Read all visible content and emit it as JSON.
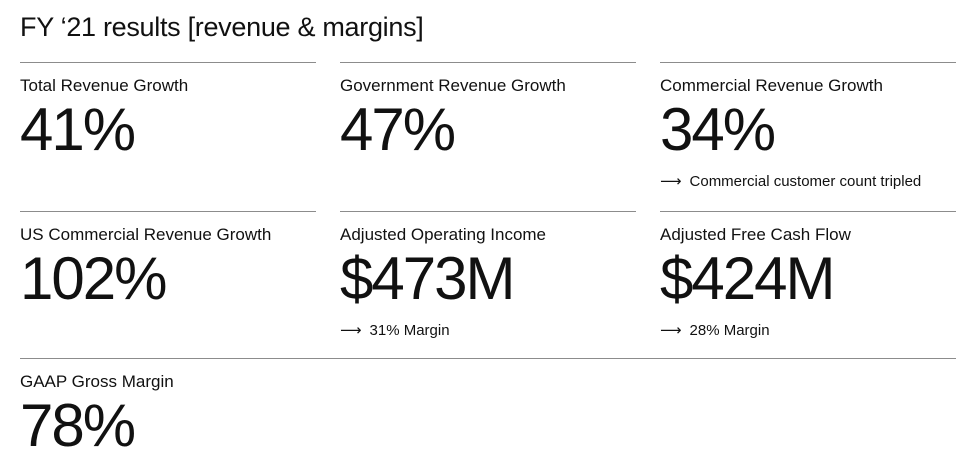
{
  "title": "FY ‘21 results [revenue & margins]",
  "metrics": [
    {
      "label": "Total Revenue Growth",
      "value": "41%",
      "note": ""
    },
    {
      "label": "Government Revenue Growth",
      "value": "47%",
      "note": ""
    },
    {
      "label": "Commercial Revenue Growth",
      "value": "34%",
      "note": "Commercial customer count tripled"
    },
    {
      "label": "US Commercial Revenue Growth",
      "value": "102%",
      "note": ""
    },
    {
      "label": "Adjusted Operating Income",
      "value": "$473M",
      "note": "31% Margin"
    },
    {
      "label": "Adjusted Free Cash Flow",
      "value": "$424M",
      "note": "28% Margin"
    },
    {
      "label": "GAAP Gross Margin",
      "value": "78%",
      "note": ""
    }
  ],
  "arrow_symbol": "⟶"
}
